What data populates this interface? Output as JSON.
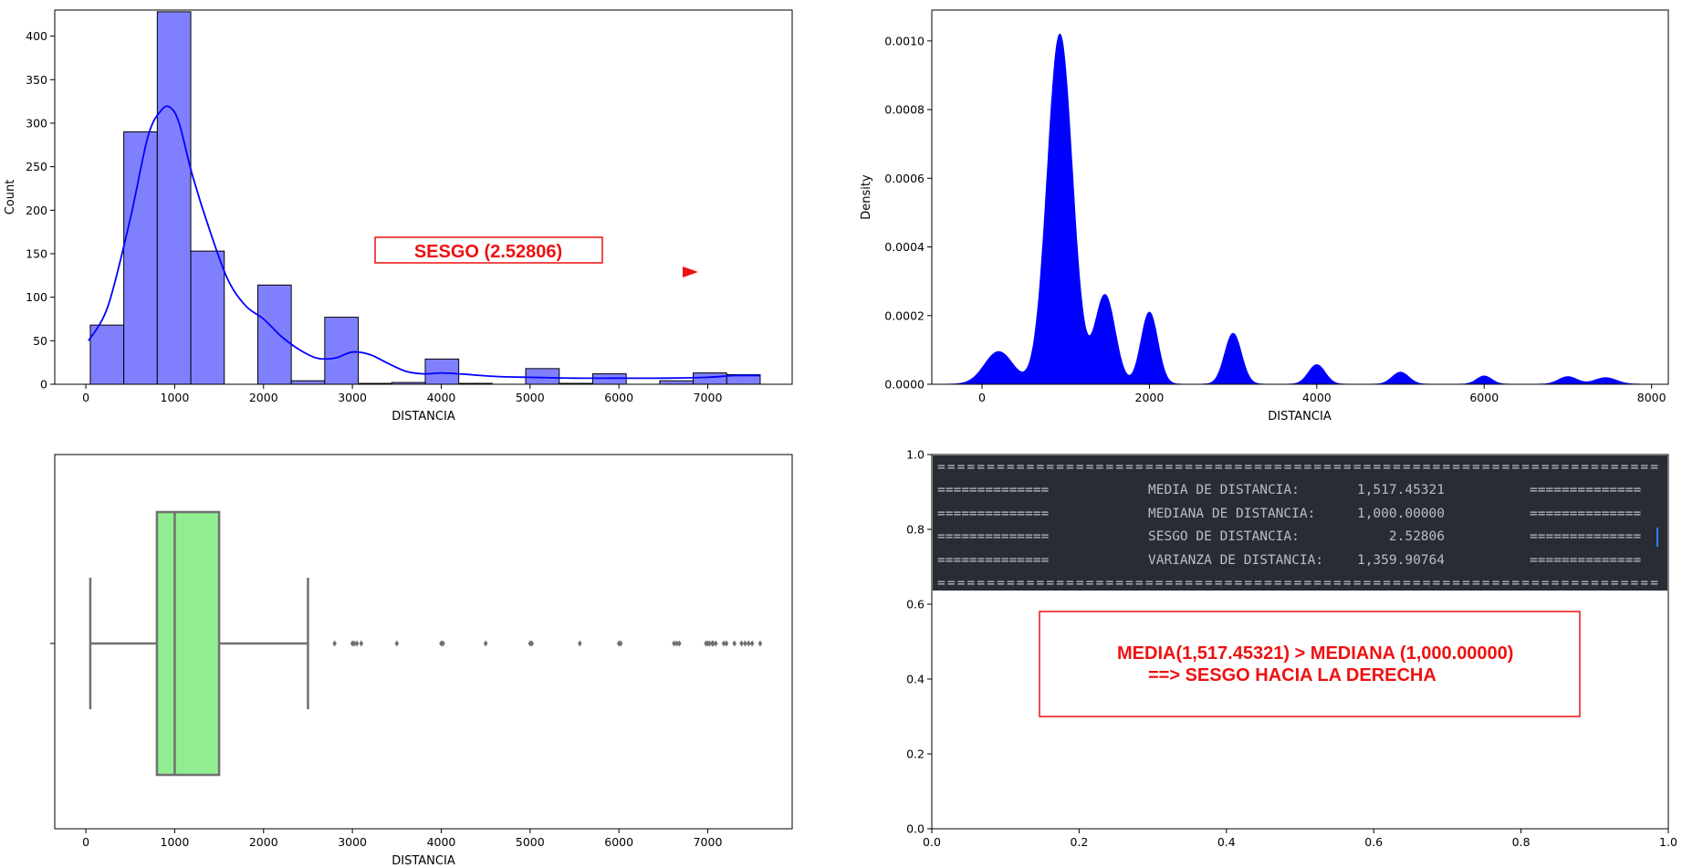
{
  "chart_data": [
    {
      "type": "bar",
      "subtype": "histogram-with-kde",
      "xlabel": "DISTANCIA",
      "ylabel": "Count",
      "xlim": [
        -350,
        7950
      ],
      "ylim": [
        0,
        430
      ],
      "xticks": [
        0,
        1000,
        2000,
        3000,
        4000,
        5000,
        6000,
        7000
      ],
      "yticks": [
        0,
        50,
        100,
        150,
        200,
        250,
        300,
        350,
        400
      ],
      "bar_color": "#8080ff",
      "kde_color": "#0000ff",
      "bins": [
        {
          "x0": 50,
          "x1": 427,
          "count": 68
        },
        {
          "x0": 427,
          "x1": 804,
          "count": 290
        },
        {
          "x0": 804,
          "x1": 1181,
          "count": 428
        },
        {
          "x0": 1181,
          "x1": 1558,
          "count": 153
        },
        {
          "x0": 1558,
          "x1": 1935,
          "count": 0
        },
        {
          "x0": 1935,
          "x1": 2312,
          "count": 114
        },
        {
          "x0": 2312,
          "x1": 2689,
          "count": 4
        },
        {
          "x0": 2689,
          "x1": 3066,
          "count": 77
        },
        {
          "x0": 3066,
          "x1": 3443,
          "count": 1
        },
        {
          "x0": 3443,
          "x1": 3820,
          "count": 2
        },
        {
          "x0": 3820,
          "x1": 4197,
          "count": 29
        },
        {
          "x0": 4197,
          "x1": 4574,
          "count": 1
        },
        {
          "x0": 4574,
          "x1": 4951,
          "count": 0
        },
        {
          "x0": 4951,
          "x1": 5328,
          "count": 18
        },
        {
          "x0": 5328,
          "x1": 5705,
          "count": 1
        },
        {
          "x0": 5705,
          "x1": 6082,
          "count": 12
        },
        {
          "x0": 6082,
          "x1": 6459,
          "count": 0
        },
        {
          "x0": 6459,
          "x1": 6836,
          "count": 4
        },
        {
          "x0": 6836,
          "x1": 7213,
          "count": 13
        },
        {
          "x0": 7213,
          "x1": 7590,
          "count": 11
        }
      ],
      "kde": {
        "x": [
          30,
          250,
          500,
          700,
          850,
          950,
          1050,
          1200,
          1400,
          1600,
          1800,
          2000,
          2200,
          2400,
          2600,
          2800,
          3000,
          3200,
          3400,
          3600,
          3800,
          4000,
          4200,
          4600,
          5000,
          5500,
          6000,
          6500,
          7000,
          7300,
          7590
        ],
        "y": [
          50,
          90,
          190,
          285,
          315,
          318,
          300,
          240,
          175,
          120,
          90,
          75,
          55,
          40,
          30,
          30,
          37,
          34,
          24,
          15,
          12,
          13,
          12,
          9,
          8,
          7,
          7,
          7,
          8,
          10,
          10
        ]
      },
      "annotations": [
        {
          "text": "SESGO (2.52806)",
          "color": "#ee1111",
          "box": true,
          "arrow": "right"
        }
      ]
    },
    {
      "type": "area",
      "subtype": "kde",
      "xlabel": "DISTANCIA",
      "ylabel": "Density",
      "xlim": [
        -600,
        8200
      ],
      "ylim": [
        0,
        0.00109
      ],
      "xticks": [
        0,
        2000,
        4000,
        6000,
        8000
      ],
      "yticks": [
        0.0,
        0.0002,
        0.0004,
        0.0006,
        0.0008,
        0.001
      ],
      "ytick_labels": [
        "0.0000",
        "0.0002",
        "0.0004",
        "0.0006",
        "0.0008",
        "0.0010"
      ],
      "fill_color": "#0000ff",
      "peaks": [
        {
          "mu": 200,
          "sigma": 170,
          "amp": 9.5e-05
        },
        {
          "mu": 930,
          "sigma": 150,
          "amp": 0.00102
        },
        {
          "mu": 1470,
          "sigma": 120,
          "amp": 0.00026
        },
        {
          "mu": 2000,
          "sigma": 100,
          "amp": 0.00021
        },
        {
          "mu": 3000,
          "sigma": 100,
          "amp": 0.000148
        },
        {
          "mu": 4000,
          "sigma": 100,
          "amp": 5.7e-05
        },
        {
          "mu": 5000,
          "sigma": 100,
          "amp": 3.5e-05
        },
        {
          "mu": 6000,
          "sigma": 90,
          "amp": 2.4e-05
        },
        {
          "mu": 7000,
          "sigma": 110,
          "amp": 2.2e-05
        },
        {
          "mu": 7450,
          "sigma": 130,
          "amp": 1.9e-05
        }
      ],
      "range": [
        -450,
        8100
      ]
    },
    {
      "type": "boxplot",
      "xlabel": "DISTANCIA",
      "xlim": [
        -350,
        7950
      ],
      "xticks": [
        0,
        1000,
        2000,
        3000,
        4000,
        5000,
        6000,
        7000
      ],
      "box_color": "#90ee90",
      "line_color": "#707070",
      "whisker_low": 50,
      "q1": 800,
      "median": 1000,
      "q3": 1500,
      "whisker_high": 2500,
      "outliers": [
        2800,
        3000,
        3020,
        3050,
        3100,
        3500,
        4000,
        4020,
        4500,
        5000,
        5020,
        5560,
        6000,
        6020,
        6620,
        6650,
        6680,
        6980,
        7000,
        7020,
        7050,
        7060,
        7090,
        7180,
        7210,
        7300,
        7380,
        7420,
        7460,
        7500,
        7590
      ]
    },
    {
      "type": "table",
      "subtype": "text-panel",
      "xlim": [
        0,
        1
      ],
      "ylim": [
        0,
        1
      ],
      "xticks": [
        0.0,
        0.2,
        0.4,
        0.6,
        0.8,
        1.0
      ],
      "yticks": [
        0.0,
        0.2,
        0.4,
        0.6,
        0.8,
        1.0
      ],
      "tick_labels": [
        "0.0",
        "0.2",
        "0.4",
        "0.6",
        "0.8",
        "1.0"
      ],
      "console_bg": "#282c34",
      "console_lines": [
        {
          "left": "",
          "label": "",
          "value": "",
          "right": "",
          "full": "========================================================================="
        },
        {
          "left": "==============",
          "label": "MEDIA DE DISTANCIA:",
          "value": "1,517.45321",
          "right": "=============="
        },
        {
          "left": "==============",
          "label": "MEDIANA DE DISTANCIA:",
          "value": "1,000.00000",
          "right": "=============="
        },
        {
          "left": "==============",
          "label": "SESGO DE DISTANCIA:",
          "value": "2.52806",
          "right": "=============="
        },
        {
          "left": "==============",
          "label": "VARIANZA DE DISTANCIA:",
          "value": "1,359.90764",
          "right": "=============="
        },
        {
          "left": "",
          "label": "",
          "value": "",
          "right": "",
          "full": "========================================================================="
        }
      ],
      "annotation_lines": [
        "MEDIA(1,517.45321) > MEDIANA (1,000.00000)",
        "==> SESGO HACIA LA DERECHA"
      ],
      "annotation_color": "#ee1111"
    }
  ]
}
